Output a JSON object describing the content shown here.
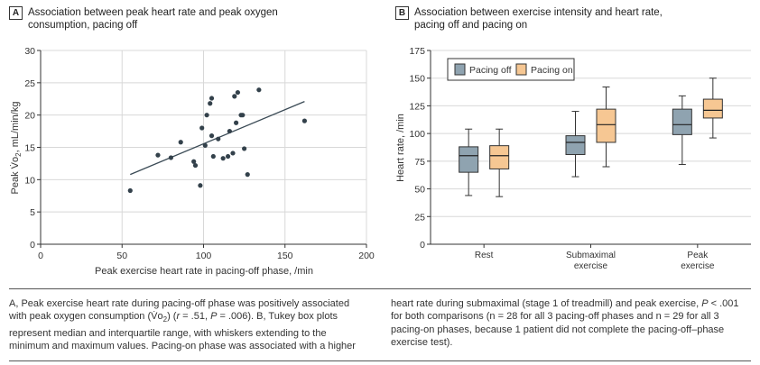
{
  "panel_a": {
    "letter": "A",
    "title_line1": "Association between peak heart rate and peak oxygen",
    "title_line2": "consumption, pacing off"
  },
  "panel_b": {
    "letter": "B",
    "title_line1": "Association between exercise intensity and heart rate,",
    "title_line2": "pacing off and pacing on"
  },
  "chart_data": [
    {
      "type": "scatter",
      "title": "Association between peak heart rate and peak oxygen consumption, pacing off",
      "xlabel": "Peak exercise heart rate in pacing-off phase, /min",
      "ylabel_main": "Peak V̇o",
      "ylabel_sub": "2",
      "ylabel_unit": ", mL/min/kg",
      "xlim": [
        0,
        200
      ],
      "ylim": [
        0,
        30
      ],
      "xticks": [
        0,
        50,
        100,
        150,
        200
      ],
      "yticks": [
        0,
        5,
        10,
        15,
        20,
        25,
        30
      ],
      "grid": true,
      "points": [
        [
          55,
          8.3
        ],
        [
          72,
          13.8
        ],
        [
          80,
          13.4
        ],
        [
          86,
          15.8
        ],
        [
          94,
          12.8
        ],
        [
          95,
          12.2
        ],
        [
          98,
          9.1
        ],
        [
          99,
          18.0
        ],
        [
          101,
          15.3
        ],
        [
          102,
          20.0
        ],
        [
          104,
          21.8
        ],
        [
          105,
          16.8
        ],
        [
          105,
          22.6
        ],
        [
          106,
          13.6
        ],
        [
          109,
          16.3
        ],
        [
          112,
          13.3
        ],
        [
          115,
          13.6
        ],
        [
          116,
          17.5
        ],
        [
          118,
          14.1
        ],
        [
          119,
          22.9
        ],
        [
          121,
          23.5
        ],
        [
          123,
          20.0
        ],
        [
          124,
          20.0
        ],
        [
          125,
          14.8
        ],
        [
          127,
          10.8
        ],
        [
          120,
          18.8
        ],
        [
          134,
          23.9
        ],
        [
          162,
          19.1
        ]
      ],
      "trendline": [
        [
          55,
          10.8
        ],
        [
          162,
          22.1
        ]
      ]
    },
    {
      "type": "box",
      "title": "Association between exercise intensity and heart rate, pacing off and pacing on",
      "ylabel": "Heart rate, /min",
      "ylim": [
        0,
        175
      ],
      "yticks": [
        0,
        25,
        50,
        75,
        100,
        125,
        150,
        175
      ],
      "grid": true,
      "legend_position": "top-left",
      "categories": [
        {
          "label_line1": "Rest",
          "label_line2": ""
        },
        {
          "label_line1": "Submaximal",
          "label_line2": "exercise"
        },
        {
          "label_line1": "Peak",
          "label_line2": "exercise"
        }
      ],
      "series": [
        {
          "name": "Pacing off",
          "color": "#8fa3b0",
          "boxes": [
            {
              "min": 44,
              "q1": 65,
              "median": 80,
              "q3": 88,
              "max": 104
            },
            {
              "min": 61,
              "q1": 81,
              "median": 92,
              "q3": 98,
              "max": 120
            },
            {
              "min": 72,
              "q1": 99,
              "median": 108,
              "q3": 122,
              "max": 134
            }
          ]
        },
        {
          "name": "Pacing on",
          "color": "#f6c793",
          "boxes": [
            {
              "min": 43,
              "q1": 68,
              "median": 80,
              "q3": 89,
              "max": 104
            },
            {
              "min": 70,
              "q1": 92,
              "median": 108,
              "q3": 122,
              "max": 142
            },
            {
              "min": 96,
              "q1": 114,
              "median": 121,
              "q3": 131,
              "max": 150
            }
          ]
        }
      ]
    }
  ],
  "caption": {
    "left_1": "A, Peak exercise heart rate during pacing-off phase was positively associated",
    "left_2a": "with peak oxygen consumption (V̇o",
    "left_2sub": "2",
    "left_2b": ") (",
    "left_2r": "r",
    "left_2c": " = .51, ",
    "left_2p": "P",
    "left_2d": " = .006). B, Tukey box plots",
    "left_3": "represent median and interquartile range, with whiskers extending to the",
    "left_4": "minimum and maximum values. Pacing-on phase was associated with a higher",
    "right_1a": "heart rate during submaximal (stage 1 of treadmill) and peak exercise, ",
    "right_1p": "P",
    "right_1b": " < .001",
    "right_2": "for both comparisons (n = 28 for all 3 pacing-off phases and n = 29 for all 3",
    "right_3": "pacing-on phases, because 1 patient did not complete the pacing-off–phase",
    "right_4": "exercise test)."
  }
}
